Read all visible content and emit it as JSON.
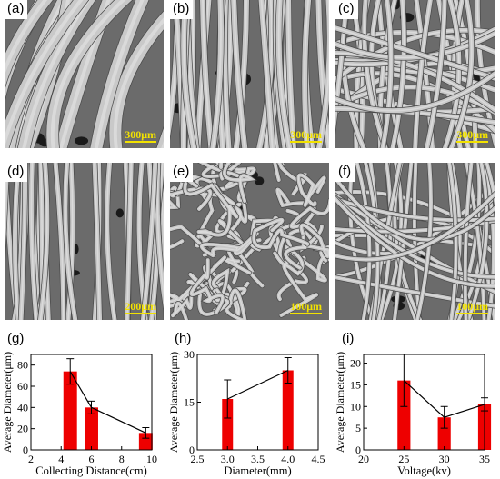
{
  "panels": [
    {
      "label": "(a)",
      "scale": "300μm",
      "fiber_count": 14,
      "fiber_width": 13,
      "style": "thick"
    },
    {
      "label": "(b)",
      "scale": "300μm",
      "fiber_count": 30,
      "fiber_width": 6,
      "style": "straight"
    },
    {
      "label": "(c)",
      "scale": "300μm",
      "fiber_count": 34,
      "fiber_width": 5,
      "style": "mesh"
    },
    {
      "label": "(d)",
      "scale": "200μm",
      "fiber_count": 30,
      "fiber_width": 5,
      "style": "straight"
    },
    {
      "label": "(e)",
      "scale": "100μm",
      "fiber_count": 40,
      "fiber_width": 4,
      "style": "curly"
    },
    {
      "label": "(f)",
      "scale": "100μm",
      "fiber_count": 36,
      "fiber_width": 4,
      "style": "mesh"
    }
  ],
  "colors": {
    "bar": "#ee0000",
    "scale": "#f2e200",
    "sem_bg": "#6b6b6b",
    "fiber": "#c9c9c9"
  },
  "chart_data": [
    {
      "label": "(g)",
      "type": "bar",
      "xlabel": "Collecting Distance(cm)",
      "ylabel": "Average Diameter(μm)",
      "xlim": [
        2,
        10
      ],
      "ylim": [
        0,
        90
      ],
      "xticks": [
        2,
        4,
        6,
        8,
        10
      ],
      "yticks": [
        0,
        20,
        40,
        60,
        80
      ],
      "x": [
        4.6,
        6.0,
        9.6
      ],
      "values": [
        74,
        40,
        16
      ],
      "errors": [
        12,
        6,
        5
      ],
      "bar_width": 0.9
    },
    {
      "label": "(h)",
      "type": "bar",
      "xlabel": "Diameter(mm)",
      "ylabel": "Average Diameter(μm)",
      "xlim": [
        2.5,
        4.5
      ],
      "ylim": [
        0,
        30
      ],
      "xticks": [
        2.5,
        3.0,
        3.5,
        4.0,
        4.5
      ],
      "yticks": [
        0,
        15,
        30
      ],
      "xtick_labels": [
        "2.5",
        "3.0",
        "3.5",
        "4.0",
        "4.5"
      ],
      "x": [
        3.0,
        4.0
      ],
      "values": [
        16,
        25
      ],
      "errors": [
        6,
        4
      ],
      "bar_width": 0.18
    },
    {
      "label": "(i)",
      "type": "bar",
      "xlabel": "Voltage(kv)",
      "ylabel": "Average Diameter(μm)",
      "xlim": [
        20,
        35
      ],
      "ylim": [
        0,
        22
      ],
      "xticks": [
        20,
        25,
        30,
        35
      ],
      "yticks": [
        0,
        5,
        10,
        15,
        20
      ],
      "x": [
        25,
        30,
        35
      ],
      "values": [
        16,
        7.5,
        10.5
      ],
      "errors": [
        6,
        2.5,
        1.5
      ],
      "bar_width": 1.6
    }
  ]
}
